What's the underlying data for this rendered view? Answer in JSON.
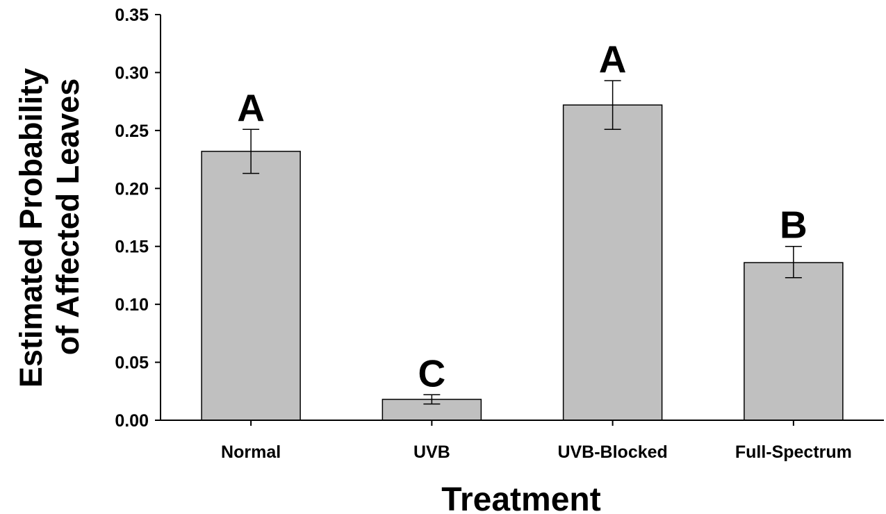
{
  "chart_data": {
    "type": "bar",
    "categories": [
      "Normal",
      "UVB",
      "UVB-Blocked",
      "Full-Spectrum"
    ],
    "values": [
      0.232,
      0.018,
      0.272,
      0.136
    ],
    "error_bars": {
      "upper": [
        0.251,
        0.022,
        0.293,
        0.15
      ],
      "lower": [
        0.213,
        0.014,
        0.251,
        0.123
      ]
    },
    "significance_labels": [
      "A",
      "C",
      "A",
      "B"
    ],
    "xlabel": "Treatment",
    "ylabel_lines": [
      "Estimated Probability",
      "of Affected Leaves"
    ],
    "ylim": [
      0,
      0.35
    ],
    "yticks": [
      "0.00",
      "0.05",
      "0.10",
      "0.15",
      "0.20",
      "0.25",
      "0.30",
      "0.35"
    ],
    "grid": false,
    "legend": "none",
    "bar_color": "#c0c0c0",
    "edge_color": "#000000"
  }
}
